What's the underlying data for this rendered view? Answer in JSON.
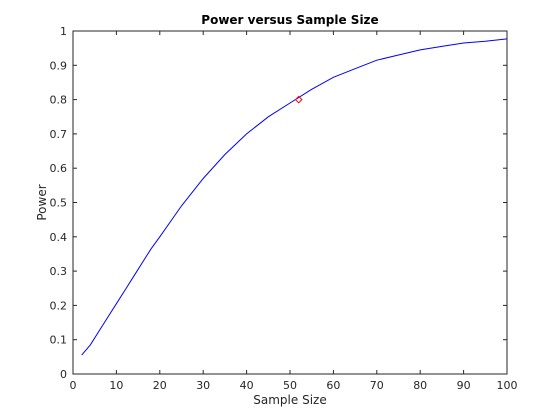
{
  "chart_data": {
    "type": "line",
    "title": "Power versus Sample Size",
    "xlabel": "Sample Size",
    "ylabel": "Power",
    "xlim": [
      0,
      100
    ],
    "ylim": [
      0,
      1
    ],
    "xticks": [
      0,
      10,
      20,
      30,
      40,
      50,
      60,
      70,
      80,
      90,
      100
    ],
    "yticks": [
      0,
      0.1,
      0.2,
      0.3,
      0.4,
      0.5,
      0.6,
      0.7,
      0.8,
      0.9,
      1
    ],
    "xtick_labels": [
      "0",
      "10",
      "20",
      "30",
      "40",
      "50",
      "60",
      "70",
      "80",
      "90",
      "100"
    ],
    "ytick_labels": [
      "0",
      "0.1",
      "0.2",
      "0.3",
      "0.4",
      "0.5",
      "0.6",
      "0.7",
      "0.8",
      "0.9",
      "1"
    ],
    "grid": false,
    "series": [
      {
        "color": "#0000ff",
        "x": [
          2,
          4,
          6,
          8,
          10,
          12,
          14,
          16,
          18,
          20,
          25,
          30,
          35,
          40,
          45,
          50,
          55,
          60,
          65,
          70,
          75,
          80,
          85,
          90,
          95,
          100
        ],
        "y": [
          0.055,
          0.085,
          0.125,
          0.165,
          0.205,
          0.245,
          0.285,
          0.325,
          0.365,
          0.4,
          0.49,
          0.57,
          0.64,
          0.7,
          0.75,
          0.79,
          0.83,
          0.865,
          0.89,
          0.915,
          0.93,
          0.945,
          0.955,
          0.965,
          0.97,
          0.977
        ]
      }
    ],
    "marker": {
      "x": 52,
      "y": 0.8,
      "color": "#ff0000",
      "shape": "diamond"
    }
  }
}
